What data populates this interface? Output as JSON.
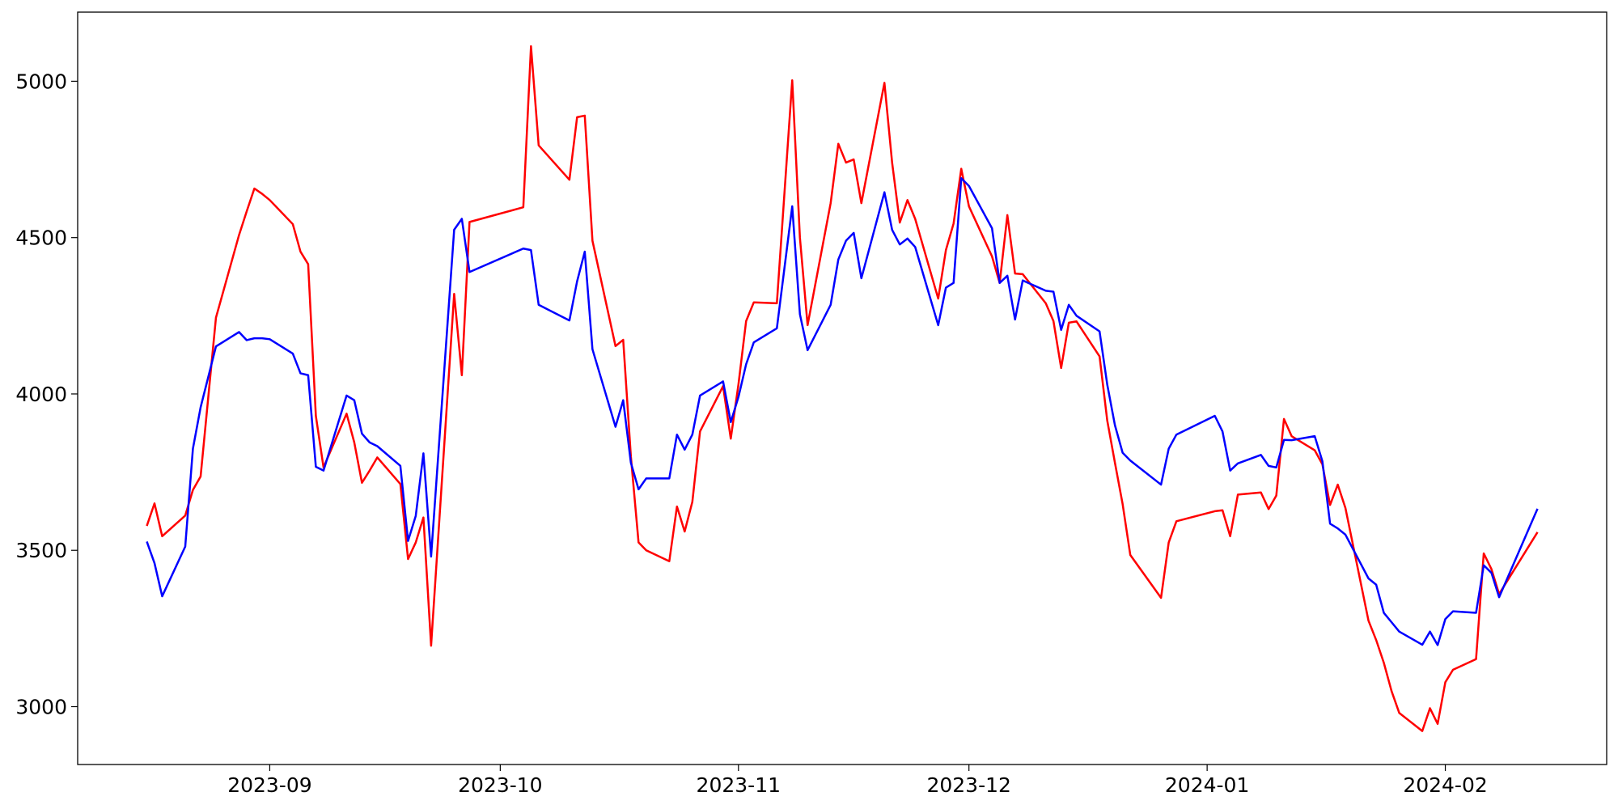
{
  "chart_data": {
    "type": "line",
    "x": [
      19585,
      19586,
      19587,
      19590,
      19591,
      19592,
      19594,
      19597,
      19598,
      19599,
      19600,
      19601,
      19604,
      19605,
      19606,
      19607,
      19608,
      19611,
      19612,
      19613,
      19614,
      19615,
      19618,
      19619,
      19620,
      19621,
      19622,
      19625,
      19626,
      19627,
      19634,
      19635,
      19636,
      19640,
      19641,
      19642,
      19643,
      19646,
      19647,
      19648,
      19649,
      19650,
      19653,
      19654,
      19655,
      19656,
      19657,
      19660,
      19661,
      19662,
      19663,
      19664,
      19667,
      19669,
      19670,
      19671,
      19674,
      19675,
      19676,
      19677,
      19678,
      19681,
      19682,
      19683,
      19684,
      19685,
      19688,
      19689,
      19690,
      19691,
      19692,
      19695,
      19696,
      19697,
      19698,
      19699,
      19702,
      19703,
      19704,
      19705,
      19706,
      19709,
      19710,
      19711,
      19712,
      19713,
      19717,
      19718,
      19719,
      19724,
      19725,
      19726,
      19727,
      19730,
      19731,
      19732,
      19733,
      19734,
      19737,
      19738,
      19739,
      19740,
      19741,
      19744,
      19745,
      19746,
      19747,
      19748,
      19751,
      19752,
      19753,
      19754,
      19755,
      19758,
      19759,
      19760,
      19761,
      19766
    ],
    "series": [
      {
        "color": "#ff0000",
        "values": [
          3578,
          3650,
          3545,
          3611,
          3693,
          3736,
          4244,
          4508,
          4584,
          4657,
          4640,
          4620,
          4543,
          4455,
          4415,
          3930,
          3765,
          3937,
          3845,
          3716,
          3755,
          3797,
          3712,
          3472,
          3525,
          3605,
          3195,
          4320,
          4060,
          4550,
          4597,
          5112,
          4795,
          4685,
          4885,
          4890,
          4490,
          4153,
          4173,
          3800,
          3525,
          3500,
          3465,
          3640,
          3560,
          3655,
          3880,
          4025,
          3857,
          4030,
          4233,
          4293,
          4290,
          5003,
          4500,
          4220,
          4610,
          4800,
          4740,
          4750,
          4610,
          4995,
          4740,
          4548,
          4620,
          4560,
          4305,
          4460,
          4545,
          4720,
          4600,
          4440,
          4355,
          4572,
          4385,
          4383,
          4290,
          4233,
          4083,
          4228,
          4232,
          4120,
          3915,
          3780,
          3648,
          3485,
          3348,
          3525,
          3593,
          3625,
          3628,
          3545,
          3678,
          3685,
          3632,
          3675,
          3920,
          3865,
          3820,
          3775,
          3645,
          3710,
          3635,
          3275,
          3213,
          3140,
          3050,
          2980,
          2922,
          2995,
          2945,
          3078,
          3118,
          3152,
          3490,
          3440,
          3360,
          3558
        ]
      },
      {
        "color": "#0000ff",
        "values": [
          3528,
          3459,
          3353,
          3512,
          3825,
          3957,
          4152,
          4198,
          4172,
          4178,
          4178,
          4175,
          4129,
          4066,
          4060,
          3767,
          3755,
          3995,
          3980,
          3873,
          3845,
          3833,
          3770,
          3530,
          3610,
          3810,
          3480,
          4525,
          4560,
          4390,
          4465,
          4460,
          4285,
          4235,
          4360,
          4455,
          4143,
          3895,
          3980,
          3780,
          3695,
          3730,
          3730,
          3870,
          3822,
          3870,
          3995,
          4040,
          3910,
          3990,
          4095,
          4165,
          4210,
          4600,
          4255,
          4140,
          4285,
          4430,
          4490,
          4515,
          4370,
          4645,
          4525,
          4478,
          4497,
          4470,
          4220,
          4340,
          4355,
          4690,
          4665,
          4530,
          4355,
          4378,
          4238,
          4363,
          4330,
          4327,
          4205,
          4285,
          4250,
          4200,
          4030,
          3900,
          3812,
          3787,
          3710,
          3825,
          3870,
          3930,
          3880,
          3755,
          3778,
          3805,
          3770,
          3765,
          3853,
          3852,
          3865,
          3785,
          3585,
          3570,
          3550,
          3410,
          3390,
          3300,
          3270,
          3240,
          3198,
          3240,
          3197,
          3280,
          3305,
          3300,
          3452,
          3428,
          3350,
          3633
        ]
      }
    ],
    "xlim": [
      19576,
      19775
    ],
    "xticks": [
      {
        "value": 19601,
        "label": "2023-09"
      },
      {
        "value": 19631,
        "label": "2023-10"
      },
      {
        "value": 19662,
        "label": "2023-11"
      },
      {
        "value": 19692,
        "label": "2023-12"
      },
      {
        "value": 19723,
        "label": "2024-01"
      },
      {
        "value": 19754,
        "label": "2024-02"
      }
    ],
    "ylim": [
      2815,
      5221
    ],
    "yticks": [
      3000,
      3500,
      4000,
      4500,
      5000
    ],
    "grid": false
  }
}
